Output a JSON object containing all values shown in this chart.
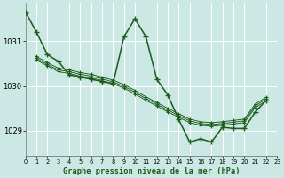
{
  "title": "Graphe pression niveau de la mer (hPa)",
  "bg_color": "#cce8e4",
  "line_color": "#1a5c1a",
  "xlim": [
    0,
    23
  ],
  "ylim": [
    1028.45,
    1031.85
  ],
  "yticks": [
    1029,
    1030,
    1031
  ],
  "xtick_labels": [
    "0",
    "1",
    "2",
    "3",
    "4",
    "5",
    "6",
    "7",
    "8",
    "9",
    "10",
    "11",
    "12",
    "13",
    "14",
    "15",
    "16",
    "17",
    "18",
    "19",
    "20",
    "21",
    "22",
    "23"
  ],
  "xticks": [
    0,
    1,
    2,
    3,
    4,
    5,
    6,
    7,
    8,
    9,
    10,
    11,
    12,
    13,
    14,
    15,
    16,
    17,
    18,
    19,
    20,
    21,
    22,
    23
  ],
  "s1_x": [
    0,
    1,
    2,
    3,
    4,
    5,
    6,
    7,
    8,
    9,
    10,
    11,
    12,
    13,
    14,
    15,
    16,
    17,
    18,
    19,
    20,
    21,
    22
  ],
  "s1_y": [
    1031.65,
    1031.2,
    1030.7,
    1030.55,
    1030.25,
    1030.2,
    1030.15,
    1030.1,
    1030.05,
    1031.1,
    1031.5,
    1031.1,
    1030.15,
    1029.8,
    1029.25,
    1028.75,
    1028.82,
    1028.75,
    1029.08,
    1029.05,
    1029.05,
    1029.42,
    1029.68
  ],
  "s2_x": [
    1,
    2,
    3,
    4,
    5,
    6,
    7,
    8,
    9,
    10,
    11,
    12,
    13,
    14,
    15,
    16,
    17,
    18,
    19,
    20,
    21,
    22
  ],
  "s2_y": [
    1030.58,
    1030.45,
    1030.32,
    1030.28,
    1030.22,
    1030.18,
    1030.12,
    1030.05,
    1029.95,
    1029.82,
    1029.68,
    1029.55,
    1029.42,
    1029.3,
    1029.18,
    1029.12,
    1029.1,
    1029.12,
    1029.15,
    1029.18,
    1029.52,
    1029.67
  ],
  "s3_x": [
    1,
    2,
    3,
    4,
    5,
    6,
    7,
    8,
    9,
    10,
    11,
    12,
    13,
    14,
    15,
    16,
    17,
    18,
    19,
    20,
    21,
    22
  ],
  "s3_y": [
    1030.62,
    1030.48,
    1030.36,
    1030.32,
    1030.26,
    1030.22,
    1030.16,
    1030.09,
    1029.99,
    1029.86,
    1029.72,
    1029.59,
    1029.46,
    1029.34,
    1029.22,
    1029.16,
    1029.14,
    1029.16,
    1029.19,
    1029.22,
    1029.56,
    1029.71
  ],
  "s4_x": [
    1,
    2,
    3,
    4,
    5,
    6,
    7,
    8,
    9,
    10,
    11,
    12,
    13,
    14,
    15,
    16,
    17,
    18,
    19,
    20,
    21,
    22
  ],
  "s4_y": [
    1030.66,
    1030.52,
    1030.4,
    1030.36,
    1030.3,
    1030.26,
    1030.2,
    1030.13,
    1030.03,
    1029.9,
    1029.76,
    1029.63,
    1029.5,
    1029.38,
    1029.26,
    1029.2,
    1029.18,
    1029.2,
    1029.23,
    1029.26,
    1029.6,
    1029.75
  ]
}
